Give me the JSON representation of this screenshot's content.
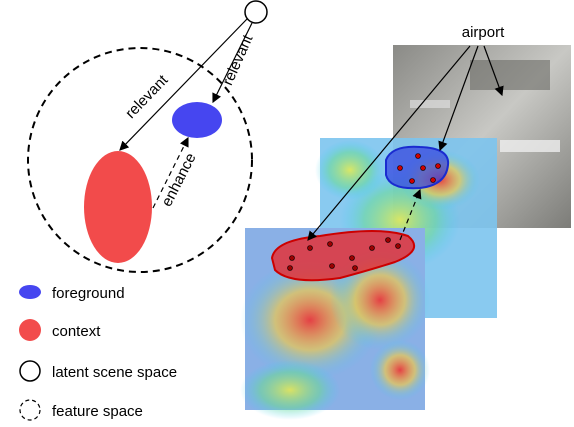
{
  "diagram": {
    "edges": [
      {
        "label": "relevant"
      },
      {
        "label": "relevant"
      },
      {
        "label": "enhance"
      }
    ],
    "annotation": "airport",
    "legend": [
      {
        "label": "foreground"
      },
      {
        "label": "context"
      },
      {
        "label": "latent scene space"
      },
      {
        "label": "feature space"
      }
    ]
  }
}
